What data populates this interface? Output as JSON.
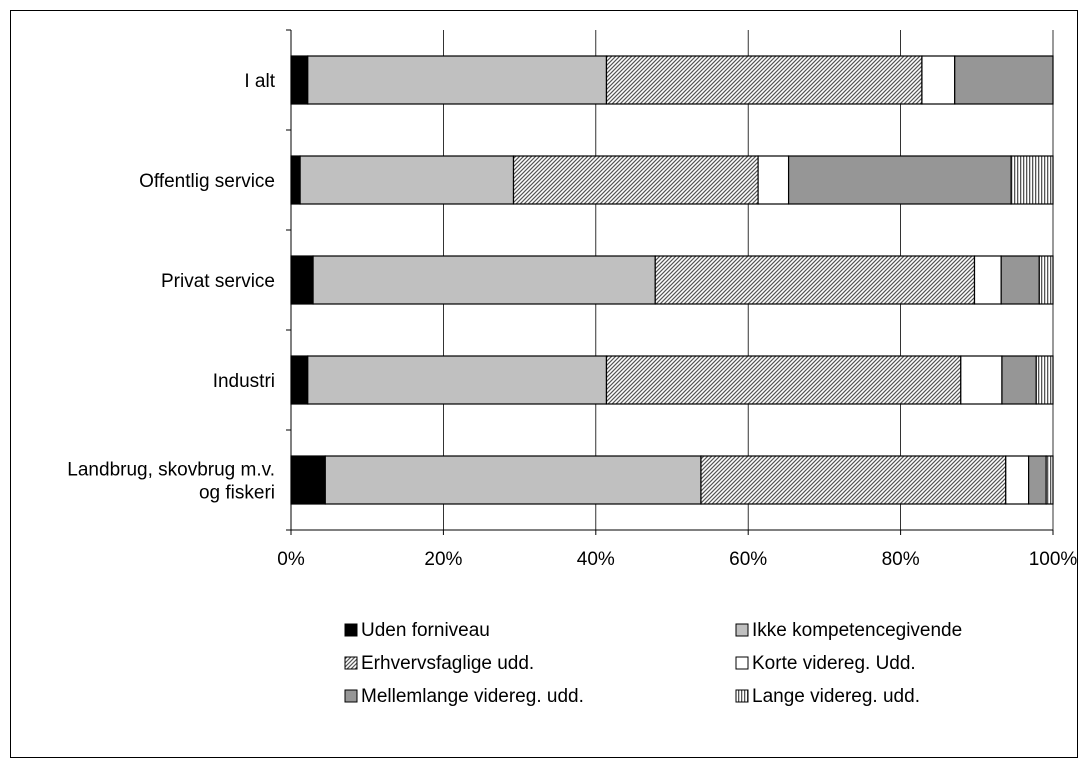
{
  "chart_data": {
    "type": "bar",
    "orientation": "horizontal",
    "stacked": true,
    "normalized_percent": true,
    "categories": [
      "I alt",
      "Offentlig service",
      "Privat service",
      "Industri",
      [
        "Landbrug, skovbrug m.v.",
        "og fiskeri"
      ]
    ],
    "series": [
      {
        "name": "Uden forniveau",
        "pattern": "solid",
        "color": "#000000",
        "values": [
          2.2,
          1.2,
          2.9,
          2.2,
          4.5
        ]
      },
      {
        "name": "Ikke kompetencegivende",
        "pattern": "solid",
        "color": "#c0c0c0",
        "values": [
          39.2,
          28.0,
          44.9,
          39.2,
          49.3
        ]
      },
      {
        "name": "Erhvervsfaglige udd.",
        "pattern": "diagonal-hatch",
        "color": "#808080",
        "values": [
          41.4,
          32.1,
          41.9,
          46.5,
          40.0
        ]
      },
      {
        "name": "Korte videreg. Udd.",
        "pattern": "solid",
        "color": "#ffffff",
        "values": [
          4.3,
          4.0,
          3.5,
          5.4,
          3.0
        ]
      },
      {
        "name": "Mellemlange videreg. udd.",
        "pattern": "solid",
        "color": "#969696",
        "values": [
          12.9,
          29.2,
          5.0,
          4.5,
          2.3
        ]
      },
      {
        "name": "Lange videreg. udd.",
        "pattern": "vertical-stripes",
        "color": "#808080",
        "values": [
          0.0,
          5.5,
          1.8,
          2.2,
          0.9
        ]
      }
    ],
    "x_ticks": [
      "0%",
      "20%",
      "40%",
      "60%",
      "80%",
      "100%"
    ],
    "xlim": [
      0,
      100
    ],
    "grid": "vertical",
    "legend_position": "bottom",
    "title": "",
    "xlabel": "",
    "ylabel": ""
  }
}
